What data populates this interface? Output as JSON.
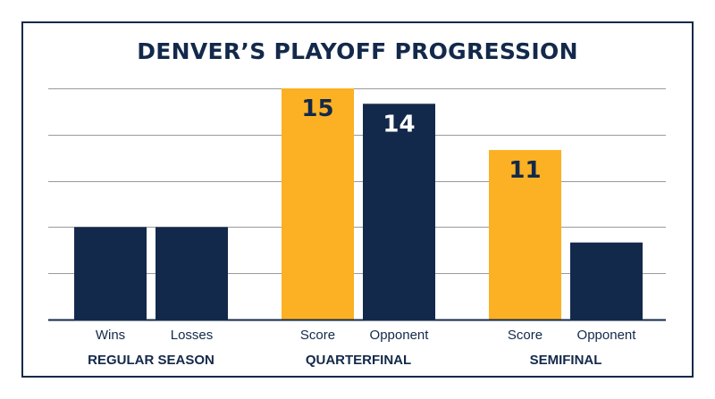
{
  "chart_data": {
    "type": "bar",
    "title": "DENVER’S PLAYOFF PROGRESSION",
    "groups": [
      {
        "name": "REGULAR SEASON",
        "bars": [
          {
            "label": "Wins",
            "value": 6,
            "color": "#13294b",
            "label_color": "#13294b"
          },
          {
            "label": "Losses",
            "value": 6,
            "color": "#13294b",
            "label_color": "#13294b"
          }
        ]
      },
      {
        "name": "QUARTERFINAL",
        "bars": [
          {
            "label": "Score",
            "value": 15,
            "color": "#fbb123",
            "label_color": "#13294b"
          },
          {
            "label": "Opponent",
            "value": 14,
            "color": "#13294b",
            "label_color": "#ffffff"
          }
        ]
      },
      {
        "name": "SEMIFINAL",
        "bars": [
          {
            "label": "Score",
            "value": 11,
            "color": "#fbb123",
            "label_color": "#13294b"
          },
          {
            "label": "Opponent",
            "value": 5,
            "color": "#13294b",
            "label_color": "#13294b"
          }
        ]
      }
    ],
    "ylim": [
      0,
      15
    ],
    "grid": true,
    "xlabel": "",
    "ylabel": "",
    "colors": {
      "navy": "#13294b",
      "gold": "#fbb123",
      "grid": "#9a9a9a"
    }
  }
}
